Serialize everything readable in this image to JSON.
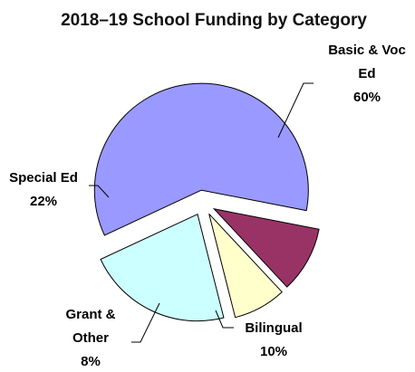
{
  "chart_data": {
    "type": "pie",
    "title": "2018–19 School Funding by Category",
    "exploded": true,
    "legend": "none",
    "slices": [
      {
        "name": "Basic & Voc Ed",
        "value": 60,
        "label_lines": [
          "Basic & Voc",
          "Ed",
          "60%"
        ],
        "color": "#9999ff"
      },
      {
        "name": "Bilingual",
        "value": 10,
        "label_lines": [
          "Bilingual",
          "10%"
        ],
        "color": "#993366"
      },
      {
        "name": "Grant & Other",
        "value": 8,
        "label_lines": [
          "Grant &",
          "Other",
          "8%"
        ],
        "color": "#ffffcc"
      },
      {
        "name": "Special Ed",
        "value": 22,
        "label_lines": [
          "Special Ed",
          "22%"
        ],
        "color": "#ccffff"
      }
    ]
  }
}
